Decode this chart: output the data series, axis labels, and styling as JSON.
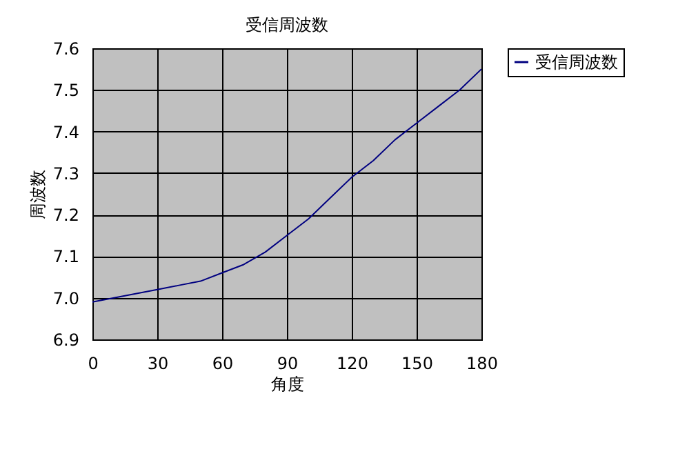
{
  "chart_data": {
    "type": "line",
    "title": "受信周波数",
    "xlabel": "角度",
    "ylabel": "周波数",
    "x": [
      0,
      10,
      20,
      30,
      40,
      50,
      60,
      70,
      80,
      90,
      100,
      110,
      120,
      130,
      140,
      150,
      160,
      170,
      180
    ],
    "series": [
      {
        "name": "受信周波数",
        "color": "#000080",
        "values": [
          6.99,
          7.0,
          7.01,
          7.02,
          7.03,
          7.04,
          7.06,
          7.08,
          7.11,
          7.15,
          7.19,
          7.24,
          7.29,
          7.33,
          7.38,
          7.42,
          7.46,
          7.5,
          7.55
        ]
      }
    ],
    "xlim": [
      0,
      180
    ],
    "xticks": [
      0,
      30,
      60,
      90,
      120,
      150,
      180
    ],
    "ylim": [
      6.9,
      7.6
    ],
    "yticks": [
      6.9,
      {
        "value": 7.0,
        "label": "7.0"
      },
      7.1,
      7.2,
      7.3,
      7.4,
      7.5,
      7.6
    ],
    "grid": true,
    "legend": "right",
    "marker": "none",
    "line_style": "solid"
  }
}
